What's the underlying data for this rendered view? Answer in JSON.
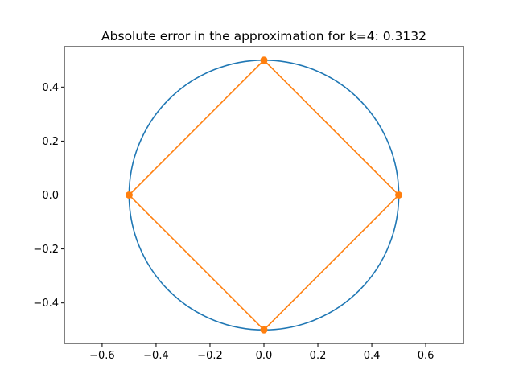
{
  "chart_data": {
    "type": "line",
    "title": "Absolute error in the approximation for k=4: 0.3132",
    "xlabel": "",
    "ylabel": "",
    "xlim": [
      -0.74,
      0.74
    ],
    "ylim": [
      -0.55,
      0.55
    ],
    "grid": false,
    "x_ticks": [
      -0.6,
      -0.4,
      -0.2,
      0.0,
      0.2,
      0.4,
      0.6
    ],
    "x_tick_labels": [
      "−0.6",
      "−0.4",
      "−0.2",
      "0.0",
      "0.2",
      "0.4",
      "0.6"
    ],
    "y_ticks": [
      -0.4,
      -0.2,
      0.0,
      0.2,
      0.4
    ],
    "y_tick_labels": [
      "−0.4",
      "−0.2",
      "0.0",
      "0.2",
      "0.4"
    ],
    "series": [
      {
        "kind": "circle",
        "center": [
          0,
          0
        ],
        "radius": 0.5,
        "color": "#1f77b4"
      },
      {
        "kind": "polygon",
        "color": "#ff7f0e",
        "markers": true,
        "x": [
          0.5,
          0.0,
          -0.5,
          0.0,
          0.5
        ],
        "y": [
          0.0,
          0.5,
          0.0,
          -0.5,
          0.0
        ]
      }
    ]
  }
}
